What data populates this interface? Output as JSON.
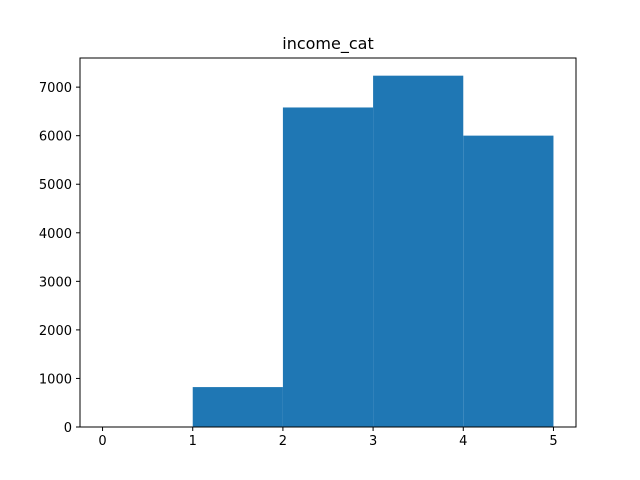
{
  "chart_data": {
    "type": "bar",
    "title": "income_cat",
    "xlabel": "",
    "ylabel": "",
    "bins": [
      {
        "x0": 1,
        "x1": 2,
        "value": 822
      },
      {
        "x0": 2,
        "x1": 3,
        "value": 6581
      },
      {
        "x0": 3,
        "x1": 4,
        "value": 7236
      },
      {
        "x0": 4,
        "x1": 5,
        "value": 6001
      }
    ],
    "xlim": [
      -0.25,
      5.25
    ],
    "ylim": [
      0,
      7600
    ],
    "xticks": [
      0,
      1,
      2,
      3,
      4,
      5
    ],
    "yticks": [
      0,
      1000,
      2000,
      3000,
      4000,
      5000,
      6000,
      7000
    ],
    "bar_color": "#1f77b4",
    "grid": false,
    "legend": "none"
  }
}
